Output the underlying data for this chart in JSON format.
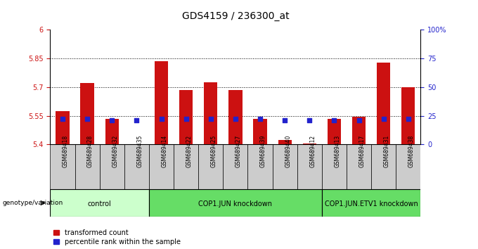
{
  "title": "GDS4159 / 236300_at",
  "samples": [
    "GSM689418",
    "GSM689428",
    "GSM689432",
    "GSM689435",
    "GSM689414",
    "GSM689422",
    "GSM689425",
    "GSM689427",
    "GSM689439",
    "GSM689440",
    "GSM689412",
    "GSM689413",
    "GSM689417",
    "GSM689431",
    "GSM689438"
  ],
  "bar_values": [
    5.575,
    5.72,
    5.535,
    5.395,
    5.835,
    5.685,
    5.725,
    5.685,
    5.535,
    5.425,
    5.405,
    5.535,
    5.545,
    5.83,
    5.7
  ],
  "blue_values": [
    5.535,
    5.535,
    5.525,
    5.525,
    5.535,
    5.535,
    5.535,
    5.535,
    5.535,
    5.525,
    5.525,
    5.525,
    5.525,
    5.535,
    5.535
  ],
  "bar_color": "#cc1111",
  "blue_color": "#2222cc",
  "ylim_left": [
    5.4,
    6.0
  ],
  "ylim_right": [
    0,
    100
  ],
  "yticks_left": [
    5.4,
    5.55,
    5.7,
    5.85,
    6.0
  ],
  "yticks_right": [
    0,
    25,
    50,
    75,
    100
  ],
  "ytick_labels_left": [
    "5.4",
    "5.55",
    "5.7",
    "5.85",
    "6"
  ],
  "ytick_labels_right": [
    "0",
    "25",
    "50",
    "75",
    "100%"
  ],
  "dotted_lines": [
    5.55,
    5.7,
    5.85
  ],
  "groups": [
    {
      "label": "control",
      "start": 0,
      "end": 4,
      "color": "#ccffcc"
    },
    {
      "label": "COP1.JUN knockdown",
      "start": 4,
      "end": 11,
      "color": "#66dd66"
    },
    {
      "label": "COP1.JUN.ETV1 knockdown",
      "start": 11,
      "end": 15,
      "color": "#66dd66"
    }
  ],
  "sample_box_color": "#cccccc",
  "xlabel_text": "genotype/variation",
  "legend_red": "transformed count",
  "legend_blue": "percentile rank within the sample",
  "bar_bottom": 5.4,
  "background_color": "#ffffff",
  "tick_color_left": "#cc1111",
  "tick_color_right": "#2222cc",
  "title_fontsize": 10,
  "tick_fontsize": 7,
  "sample_fontsize": 5.5,
  "group_fontsize": 7,
  "legend_fontsize": 7
}
